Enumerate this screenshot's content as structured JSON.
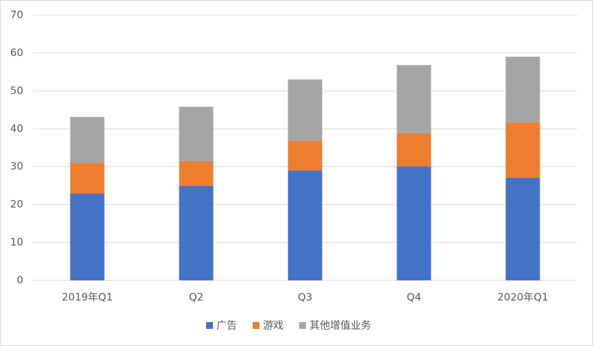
{
  "chart_data": {
    "type": "stacked_bar",
    "categories": [
      "2019年Q1",
      "Q2",
      "Q3",
      "Q4",
      "2020年Q1"
    ],
    "series": [
      {
        "name": "广告",
        "color": "#4472c4",
        "values": [
          22.9,
          24.9,
          29.0,
          30.1,
          27.1
        ]
      },
      {
        "name": "游戏",
        "color": "#ed7d31",
        "values": [
          8.1,
          6.5,
          7.8,
          8.7,
          14.6
        ]
      },
      {
        "name": "其他增值业务",
        "color": "#a5a5a5",
        "values": [
          12.1,
          14.4,
          16.2,
          18.0,
          17.3
        ]
      }
    ],
    "ylim": [
      0,
      70
    ],
    "yticks": [
      0,
      10,
      20,
      30,
      40,
      50,
      60,
      70
    ],
    "grid": true,
    "legend": "bottom"
  }
}
